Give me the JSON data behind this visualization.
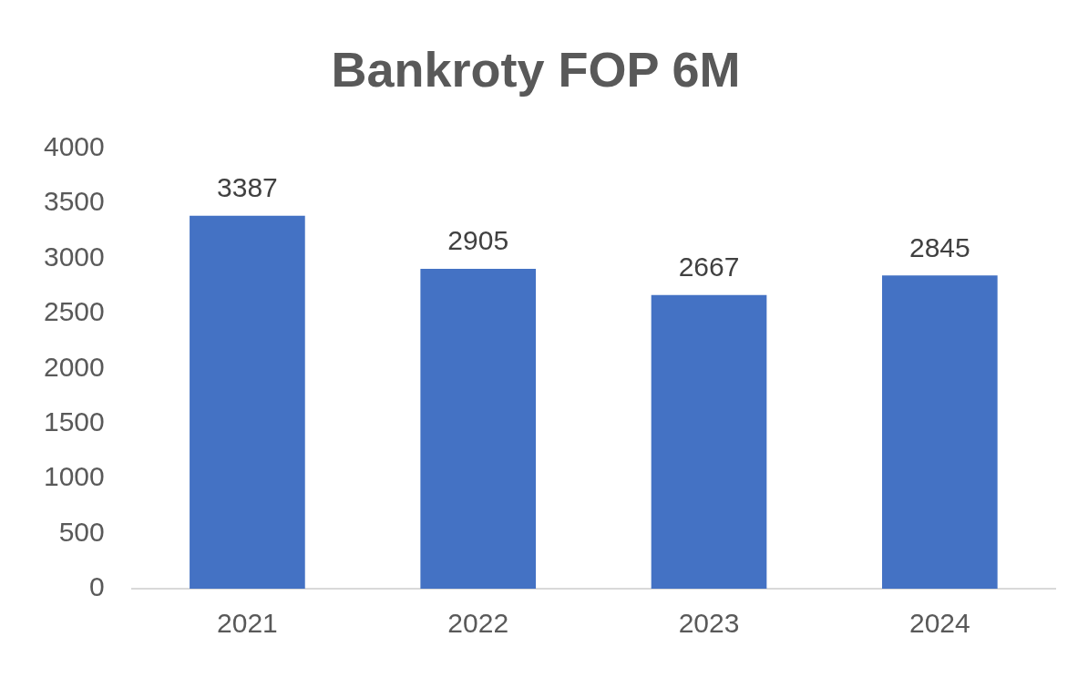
{
  "chart_data": {
    "type": "bar",
    "title": "Bankroty FOP 6M",
    "categories": [
      "2021",
      "2022",
      "2023",
      "2024"
    ],
    "values": [
      3387,
      2905,
      2667,
      2845
    ],
    "color": "#4472c4",
    "ylim": [
      0,
      4000
    ],
    "yticks": [
      0,
      500,
      1000,
      1500,
      2000,
      2500,
      3000,
      3500,
      4000
    ],
    "grid": false,
    "legend": false,
    "data_labels": true
  }
}
